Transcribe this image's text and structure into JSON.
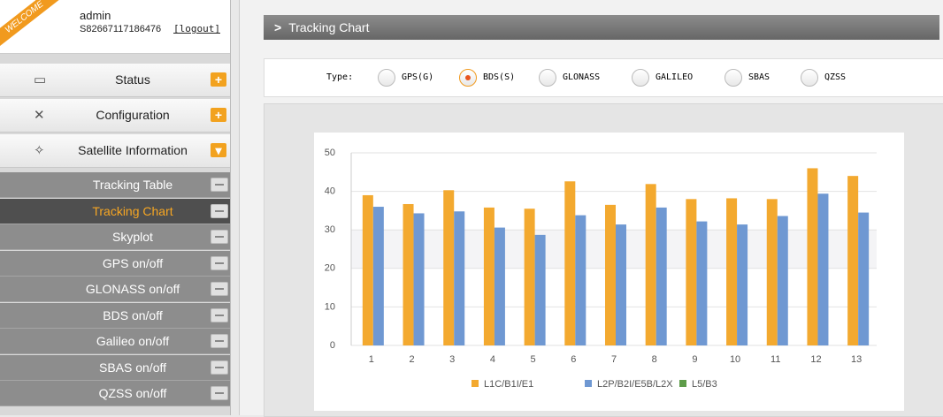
{
  "user": {
    "badge": "WELCOME",
    "name": "admin",
    "serial": "S82667117186476",
    "logout": "[logout]"
  },
  "menu": [
    "Status",
    "Configuration",
    "Satellite Information"
  ],
  "submenu": [
    {
      "label": "Tracking Table"
    },
    {
      "label": "Tracking Chart",
      "selected": true
    },
    {
      "label": "Skyplot"
    },
    {
      "label": "GPS on/off"
    },
    {
      "label": "GLONASS on/off"
    },
    {
      "label": "BDS on/off"
    },
    {
      "label": "Galileo on/off"
    },
    {
      "label": "SBAS on/off"
    },
    {
      "label": "QZSS on/off"
    }
  ],
  "page_title": "Tracking Chart",
  "type_filter": {
    "label": "Type:",
    "options": [
      {
        "label": "GPS(G)"
      },
      {
        "label": "BDS(S)",
        "selected": true
      },
      {
        "label": "GLONASS"
      },
      {
        "label": "GALILEO"
      },
      {
        "label": "SBAS"
      },
      {
        "label": "QZSS"
      }
    ]
  },
  "chart_data": {
    "type": "bar",
    "categories": [
      "1",
      "2",
      "3",
      "4",
      "5",
      "6",
      "7",
      "8",
      "9",
      "10",
      "11",
      "12",
      "13"
    ],
    "series": [
      {
        "name": "L1C/B1I/E1",
        "color": "#f3a92f",
        "values": [
          39,
          36.7,
          40.3,
          35.8,
          35.5,
          42.6,
          36.5,
          41.9,
          38,
          38.2,
          38,
          46,
          44
        ]
      },
      {
        "name": "L2P/B2I/E5B/L2X",
        "color": "#6f98d2",
        "values": [
          36,
          34.3,
          34.8,
          30.6,
          28.7,
          33.8,
          31.4,
          35.8,
          32.2,
          31.4,
          33.6,
          39.4,
          34.5
        ]
      },
      {
        "name": "L5/B3",
        "color": "#5e9c4a",
        "values": [
          null,
          null,
          null,
          null,
          null,
          null,
          null,
          null,
          null,
          null,
          null,
          null,
          null
        ]
      }
    ],
    "ylim": [
      0,
      50
    ],
    "yticks": [
      0,
      10,
      20,
      30,
      40,
      50
    ],
    "grid": true,
    "legend": "bottom"
  }
}
